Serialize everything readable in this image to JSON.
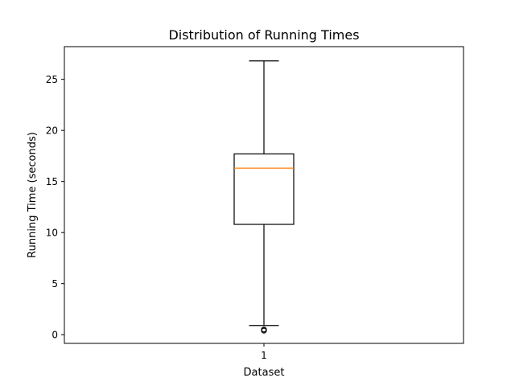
{
  "chart_data": {
    "type": "box",
    "title": "Distribution of Running Times",
    "xlabel": "Dataset",
    "ylabel": "Running Time (seconds)",
    "categories": [
      "1"
    ],
    "ylim": [
      -0.85,
      28.2
    ],
    "yticks": [
      0,
      5,
      10,
      15,
      20,
      25
    ],
    "grid": false,
    "boxes": [
      {
        "label": "1",
        "whisker_low": 0.9,
        "q1": 10.8,
        "median": 16.3,
        "q3": 17.7,
        "whisker_high": 26.8,
        "outliers": [
          0.4,
          0.5
        ]
      }
    ],
    "colors": {
      "box": "#000000",
      "median": "#ff7f0e",
      "frame": "#000000"
    }
  }
}
